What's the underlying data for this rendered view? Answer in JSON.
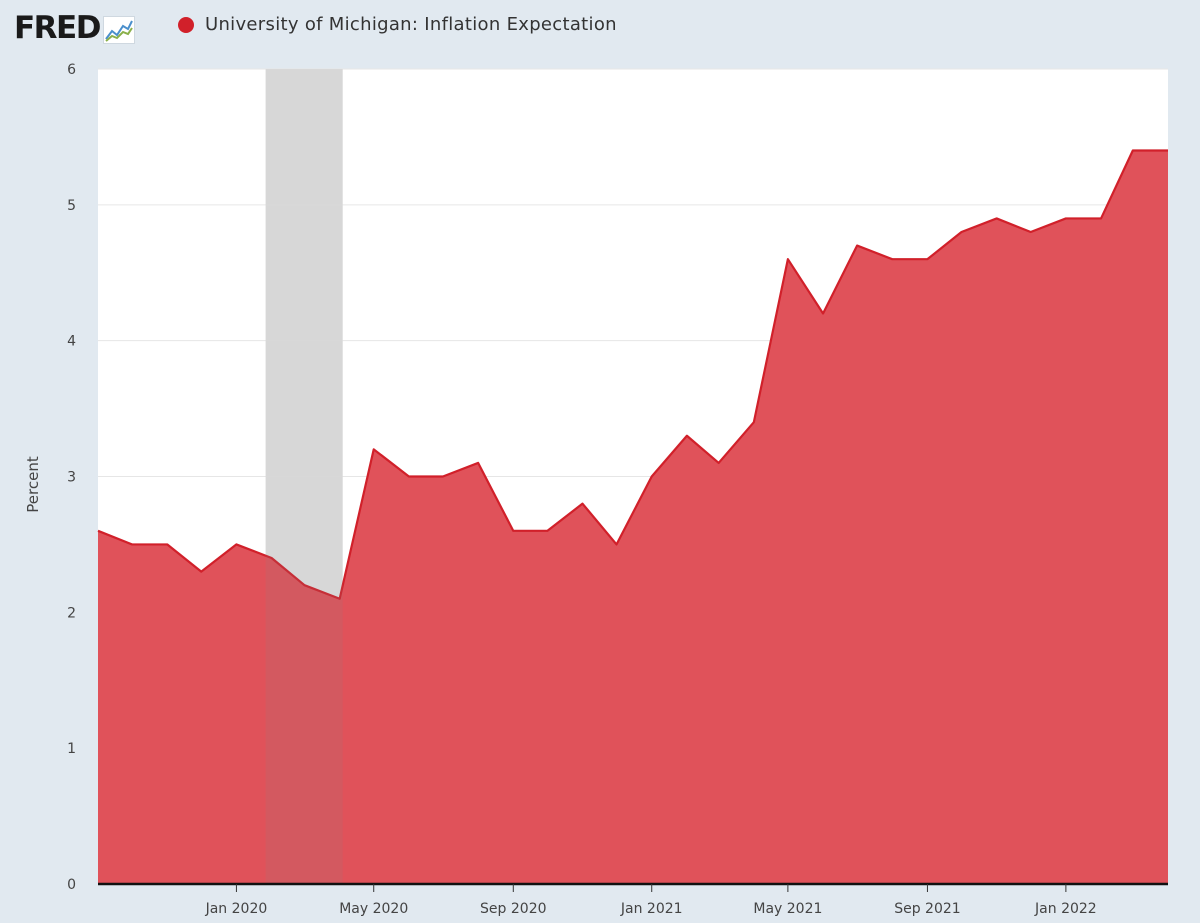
{
  "header": {
    "logo_text": "FRED",
    "logo_icon": "fred-line-graph-icon"
  },
  "colors": {
    "series": "#e0525a",
    "series_line": "#d1202a",
    "legend_dot": "#d1202a",
    "recession": "#c6c6c6",
    "plot_background": "#ffffff",
    "page_background": "#e1e9f0"
  },
  "chart_data": {
    "type": "area",
    "title": "",
    "xlabel": "",
    "ylabel": "Percent",
    "ylim": [
      0,
      6
    ],
    "yticks": [
      0,
      1,
      2,
      3,
      4,
      5,
      6
    ],
    "xlim": [
      "2019-09-01",
      "2022-04-01"
    ],
    "xticks": [
      {
        "date": "2020-01-01",
        "label": "Jan 2020"
      },
      {
        "date": "2020-05-01",
        "label": "May 2020"
      },
      {
        "date": "2020-09-01",
        "label": "Sep 2020"
      },
      {
        "date": "2021-01-01",
        "label": "Jan 2021"
      },
      {
        "date": "2021-05-01",
        "label": "May 2021"
      },
      {
        "date": "2021-09-01",
        "label": "Sep 2021"
      },
      {
        "date": "2022-01-01",
        "label": "Jan 2022"
      }
    ],
    "grid": true,
    "recession_shading": [
      {
        "start": "2020-02-01",
        "end": "2020-04-01"
      }
    ],
    "series": [
      {
        "name": "University of Michigan: Inflation Expectation",
        "points": [
          {
            "date": "2019-09-01",
            "value": 2.6
          },
          {
            "date": "2019-10-01",
            "value": 2.5
          },
          {
            "date": "2019-11-01",
            "value": 2.5
          },
          {
            "date": "2019-12-01",
            "value": 2.3
          },
          {
            "date": "2020-01-01",
            "value": 2.5
          },
          {
            "date": "2020-02-01",
            "value": 2.4
          },
          {
            "date": "2020-03-01",
            "value": 2.2
          },
          {
            "date": "2020-04-01",
            "value": 2.1
          },
          {
            "date": "2020-05-01",
            "value": 3.2
          },
          {
            "date": "2020-06-01",
            "value": 3.0
          },
          {
            "date": "2020-07-01",
            "value": 3.0
          },
          {
            "date": "2020-08-01",
            "value": 3.1
          },
          {
            "date": "2020-09-01",
            "value": 2.6
          },
          {
            "date": "2020-10-01",
            "value": 2.6
          },
          {
            "date": "2020-11-01",
            "value": 2.8
          },
          {
            "date": "2020-12-01",
            "value": 2.5
          },
          {
            "date": "2021-01-01",
            "value": 3.0
          },
          {
            "date": "2021-02-01",
            "value": 3.3
          },
          {
            "date": "2021-03-01",
            "value": 3.1
          },
          {
            "date": "2021-04-01",
            "value": 3.4
          },
          {
            "date": "2021-05-01",
            "value": 4.6
          },
          {
            "date": "2021-06-01",
            "value": 4.2
          },
          {
            "date": "2021-07-01",
            "value": 4.7
          },
          {
            "date": "2021-08-01",
            "value": 4.6
          },
          {
            "date": "2021-09-01",
            "value": 4.6
          },
          {
            "date": "2021-10-01",
            "value": 4.8
          },
          {
            "date": "2021-11-01",
            "value": 4.9
          },
          {
            "date": "2021-12-01",
            "value": 4.8
          },
          {
            "date": "2022-01-01",
            "value": 4.9
          },
          {
            "date": "2022-02-01",
            "value": 4.9
          },
          {
            "date": "2022-03-01",
            "value": 5.4
          },
          {
            "date": "2022-04-01",
            "value": 5.4
          }
        ]
      }
    ]
  }
}
